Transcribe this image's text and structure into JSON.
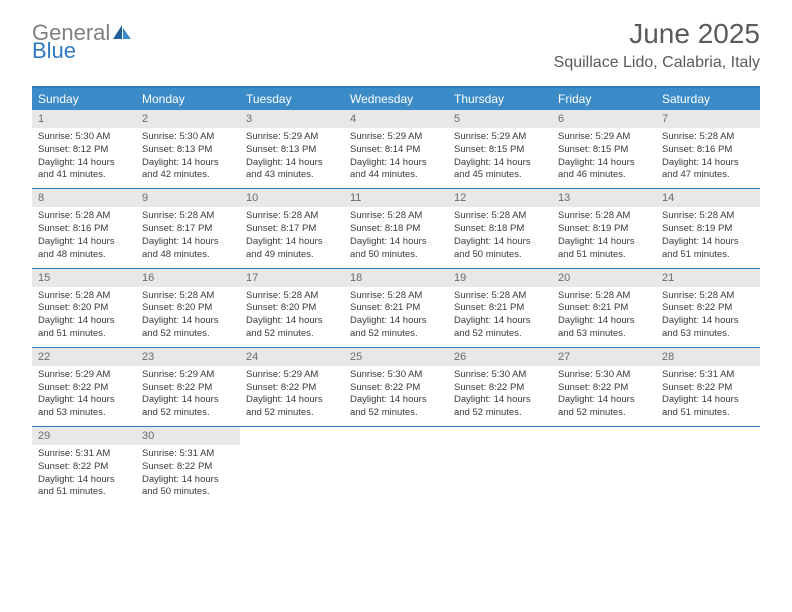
{
  "logo": {
    "text_gray": "General",
    "text_blue": "Blue"
  },
  "title": "June 2025",
  "location": "Squillace Lido, Calabria, Italy",
  "colors": {
    "header_bg": "#3b8bc9",
    "border": "#2f7bbf",
    "daynum_bg": "#e8e8e8",
    "text": "#3a3a3a",
    "title_text": "#5a5a5a"
  },
  "day_names": [
    "Sunday",
    "Monday",
    "Tuesday",
    "Wednesday",
    "Thursday",
    "Friday",
    "Saturday"
  ],
  "weeks": [
    [
      {
        "n": "1",
        "sr": "Sunrise: 5:30 AM",
        "ss": "Sunset: 8:12 PM",
        "d1": "Daylight: 14 hours",
        "d2": "and 41 minutes."
      },
      {
        "n": "2",
        "sr": "Sunrise: 5:30 AM",
        "ss": "Sunset: 8:13 PM",
        "d1": "Daylight: 14 hours",
        "d2": "and 42 minutes."
      },
      {
        "n": "3",
        "sr": "Sunrise: 5:29 AM",
        "ss": "Sunset: 8:13 PM",
        "d1": "Daylight: 14 hours",
        "d2": "and 43 minutes."
      },
      {
        "n": "4",
        "sr": "Sunrise: 5:29 AM",
        "ss": "Sunset: 8:14 PM",
        "d1": "Daylight: 14 hours",
        "d2": "and 44 minutes."
      },
      {
        "n": "5",
        "sr": "Sunrise: 5:29 AM",
        "ss": "Sunset: 8:15 PM",
        "d1": "Daylight: 14 hours",
        "d2": "and 45 minutes."
      },
      {
        "n": "6",
        "sr": "Sunrise: 5:29 AM",
        "ss": "Sunset: 8:15 PM",
        "d1": "Daylight: 14 hours",
        "d2": "and 46 minutes."
      },
      {
        "n": "7",
        "sr": "Sunrise: 5:28 AM",
        "ss": "Sunset: 8:16 PM",
        "d1": "Daylight: 14 hours",
        "d2": "and 47 minutes."
      }
    ],
    [
      {
        "n": "8",
        "sr": "Sunrise: 5:28 AM",
        "ss": "Sunset: 8:16 PM",
        "d1": "Daylight: 14 hours",
        "d2": "and 48 minutes."
      },
      {
        "n": "9",
        "sr": "Sunrise: 5:28 AM",
        "ss": "Sunset: 8:17 PM",
        "d1": "Daylight: 14 hours",
        "d2": "and 48 minutes."
      },
      {
        "n": "10",
        "sr": "Sunrise: 5:28 AM",
        "ss": "Sunset: 8:17 PM",
        "d1": "Daylight: 14 hours",
        "d2": "and 49 minutes."
      },
      {
        "n": "11",
        "sr": "Sunrise: 5:28 AM",
        "ss": "Sunset: 8:18 PM",
        "d1": "Daylight: 14 hours",
        "d2": "and 50 minutes."
      },
      {
        "n": "12",
        "sr": "Sunrise: 5:28 AM",
        "ss": "Sunset: 8:18 PM",
        "d1": "Daylight: 14 hours",
        "d2": "and 50 minutes."
      },
      {
        "n": "13",
        "sr": "Sunrise: 5:28 AM",
        "ss": "Sunset: 8:19 PM",
        "d1": "Daylight: 14 hours",
        "d2": "and 51 minutes."
      },
      {
        "n": "14",
        "sr": "Sunrise: 5:28 AM",
        "ss": "Sunset: 8:19 PM",
        "d1": "Daylight: 14 hours",
        "d2": "and 51 minutes."
      }
    ],
    [
      {
        "n": "15",
        "sr": "Sunrise: 5:28 AM",
        "ss": "Sunset: 8:20 PM",
        "d1": "Daylight: 14 hours",
        "d2": "and 51 minutes."
      },
      {
        "n": "16",
        "sr": "Sunrise: 5:28 AM",
        "ss": "Sunset: 8:20 PM",
        "d1": "Daylight: 14 hours",
        "d2": "and 52 minutes."
      },
      {
        "n": "17",
        "sr": "Sunrise: 5:28 AM",
        "ss": "Sunset: 8:20 PM",
        "d1": "Daylight: 14 hours",
        "d2": "and 52 minutes."
      },
      {
        "n": "18",
        "sr": "Sunrise: 5:28 AM",
        "ss": "Sunset: 8:21 PM",
        "d1": "Daylight: 14 hours",
        "d2": "and 52 minutes."
      },
      {
        "n": "19",
        "sr": "Sunrise: 5:28 AM",
        "ss": "Sunset: 8:21 PM",
        "d1": "Daylight: 14 hours",
        "d2": "and 52 minutes."
      },
      {
        "n": "20",
        "sr": "Sunrise: 5:28 AM",
        "ss": "Sunset: 8:21 PM",
        "d1": "Daylight: 14 hours",
        "d2": "and 53 minutes."
      },
      {
        "n": "21",
        "sr": "Sunrise: 5:28 AM",
        "ss": "Sunset: 8:22 PM",
        "d1": "Daylight: 14 hours",
        "d2": "and 53 minutes."
      }
    ],
    [
      {
        "n": "22",
        "sr": "Sunrise: 5:29 AM",
        "ss": "Sunset: 8:22 PM",
        "d1": "Daylight: 14 hours",
        "d2": "and 53 minutes."
      },
      {
        "n": "23",
        "sr": "Sunrise: 5:29 AM",
        "ss": "Sunset: 8:22 PM",
        "d1": "Daylight: 14 hours",
        "d2": "and 52 minutes."
      },
      {
        "n": "24",
        "sr": "Sunrise: 5:29 AM",
        "ss": "Sunset: 8:22 PM",
        "d1": "Daylight: 14 hours",
        "d2": "and 52 minutes."
      },
      {
        "n": "25",
        "sr": "Sunrise: 5:30 AM",
        "ss": "Sunset: 8:22 PM",
        "d1": "Daylight: 14 hours",
        "d2": "and 52 minutes."
      },
      {
        "n": "26",
        "sr": "Sunrise: 5:30 AM",
        "ss": "Sunset: 8:22 PM",
        "d1": "Daylight: 14 hours",
        "d2": "and 52 minutes."
      },
      {
        "n": "27",
        "sr": "Sunrise: 5:30 AM",
        "ss": "Sunset: 8:22 PM",
        "d1": "Daylight: 14 hours",
        "d2": "and 52 minutes."
      },
      {
        "n": "28",
        "sr": "Sunrise: 5:31 AM",
        "ss": "Sunset: 8:22 PM",
        "d1": "Daylight: 14 hours",
        "d2": "and 51 minutes."
      }
    ],
    [
      {
        "n": "29",
        "sr": "Sunrise: 5:31 AM",
        "ss": "Sunset: 8:22 PM",
        "d1": "Daylight: 14 hours",
        "d2": "and 51 minutes."
      },
      {
        "n": "30",
        "sr": "Sunrise: 5:31 AM",
        "ss": "Sunset: 8:22 PM",
        "d1": "Daylight: 14 hours",
        "d2": "and 50 minutes."
      },
      null,
      null,
      null,
      null,
      null
    ]
  ]
}
